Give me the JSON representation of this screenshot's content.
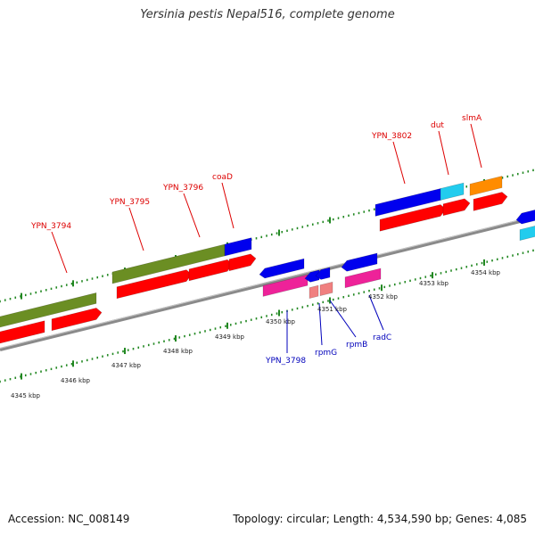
{
  "title": "Yersinia pestis Nepal516, complete genome",
  "footer": {
    "accession": "Accession: NC_008149",
    "summary": "Topology: circular; Length: 4,534,590 bp; Genes: 4,085"
  },
  "colors": {
    "backbone": "#8a8a8a",
    "tick": "#228822",
    "feature_gene": "#6b8e23",
    "cds": "#ff0000",
    "blue_gene": "#0000ee",
    "pink_gene": "#ee2299",
    "salmon_gene": "#f08080",
    "cyan_gene": "#22ccee",
    "orange_gene": "#ff8c00",
    "label_red": "#dd0000",
    "label_blue": "#0000bb"
  },
  "scale_labels": [
    "4345 kbp",
    "4346 kbp",
    "4347 kbp",
    "4348 kbp",
    "4349 kbp",
    "4350 kbp",
    "4351 kbp",
    "4352 kbp",
    "4353 kbp",
    "4354 kbp"
  ],
  "genes_top": [
    {
      "name": "YPN_3794",
      "color_key": "label_red"
    },
    {
      "name": "YPN_3795",
      "color_key": "label_red"
    },
    {
      "name": "YPN_3796",
      "color_key": "label_red"
    },
    {
      "name": "coaD",
      "color_key": "label_red"
    },
    {
      "name": "YPN_3802",
      "color_key": "label_red"
    },
    {
      "name": "dut",
      "color_key": "label_red"
    },
    {
      "name": "slmA",
      "color_key": "label_red"
    }
  ],
  "genes_bottom": [
    {
      "name": "YPN_3798",
      "color_key": "label_blue"
    },
    {
      "name": "rpmG",
      "color_key": "label_blue"
    },
    {
      "name": "rpmB",
      "color_key": "label_blue"
    },
    {
      "name": "radC",
      "color_key": "label_blue"
    }
  ]
}
